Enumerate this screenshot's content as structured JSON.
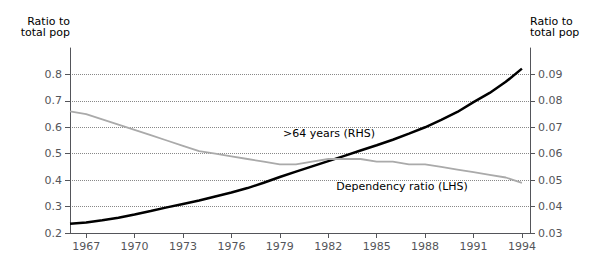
{
  "chart_data": {
    "type": "line",
    "x": [
      1966,
      1967,
      1968,
      1969,
      1970,
      1971,
      1972,
      1973,
      1974,
      1975,
      1976,
      1977,
      1978,
      1979,
      1980,
      1981,
      1982,
      1983,
      1984,
      1985,
      1986,
      1987,
      1988,
      1989,
      1990,
      1991,
      1992,
      1993,
      1994
    ],
    "series": [
      {
        "color": "#000000",
        "values": [
          0.235,
          0.24,
          0.248,
          0.258,
          0.27,
          0.283,
          0.297,
          0.31,
          0.323,
          0.338,
          0.353,
          0.37,
          0.39,
          0.412,
          0.432,
          0.452,
          0.472,
          0.492,
          0.512,
          0.532,
          0.553,
          0.576,
          0.6,
          0.628,
          0.658,
          0.695,
          0.73,
          0.772,
          0.822
        ]
      },
      {
        "color": "#aaaaaa",
        "axis": "y2",
        "values": [
          0.076,
          0.075,
          0.073,
          0.071,
          0.069,
          0.067,
          0.065,
          0.063,
          0.061,
          0.06,
          0.059,
          0.058,
          0.057,
          0.056,
          0.056,
          0.057,
          0.058,
          0.058,
          0.058,
          0.057,
          0.057,
          0.056,
          0.056,
          0.055,
          0.054,
          0.053,
          0.052,
          0.051,
          0.049
        ]
      }
    ],
    "xlim": [
      1966.0,
      1994.5
    ],
    "xticks": [
      1967,
      1970,
      1973,
      1976,
      1979,
      1982,
      1985,
      1988,
      1991,
      1994
    ],
    "ylim": [
      0.2,
      0.9
    ],
    "yticks": [
      0.2,
      0.3,
      0.4,
      0.5,
      0.6,
      0.7,
      0.8
    ],
    "y2lim": [
      0.03,
      0.1
    ],
    "y2ticks": [
      0.03,
      0.04,
      0.05,
      0.06,
      0.07,
      0.08,
      0.09
    ],
    "ylabel": "Ratio to\ntotal pop",
    "y2label": "Ratio to\ntotal pop",
    "grid": true,
    "annotations": [
      {
        "text": ">64 years (RHS)",
        "x": 1979.2,
        "y": 0.575
      },
      {
        "text": "Dependency ratio (LHS)",
        "x": 1982.5,
        "y": 0.375
      }
    ]
  }
}
